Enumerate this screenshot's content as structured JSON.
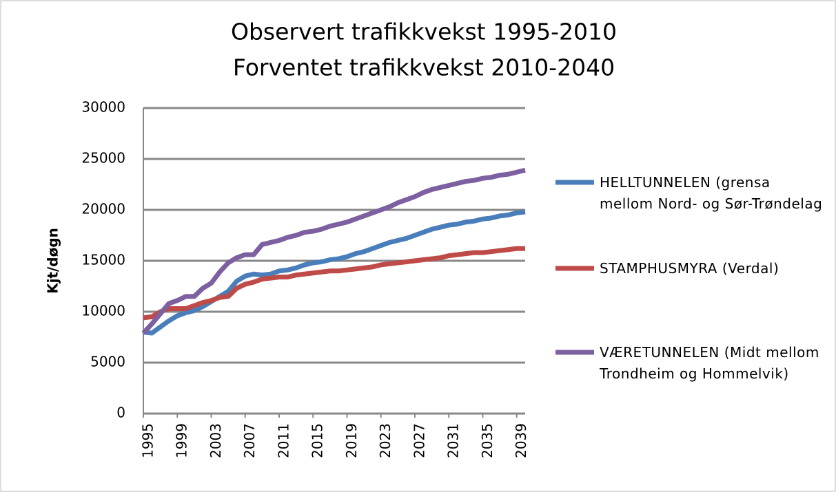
{
  "chart_data": {
    "type": "line",
    "title": "Observert trafikkvekst 1995-2010",
    "subtitle": "Forventet trafikkvekst 2010-2040",
    "ylabel": "Kjt/døgn",
    "x": [
      1995,
      1996,
      1997,
      1998,
      1999,
      2000,
      2001,
      2002,
      2003,
      2004,
      2005,
      2006,
      2007,
      2008,
      2009,
      2010,
      2011,
      2012,
      2013,
      2014,
      2015,
      2016,
      2017,
      2018,
      2019,
      2020,
      2021,
      2022,
      2023,
      2024,
      2025,
      2026,
      2027,
      2028,
      2029,
      2030,
      2031,
      2032,
      2033,
      2034,
      2035,
      2036,
      2037,
      2038,
      2039,
      2040
    ],
    "xlim": [
      1995,
      2040
    ],
    "xticks": [
      1995,
      1999,
      2003,
      2007,
      2011,
      2015,
      2019,
      2023,
      2027,
      2031,
      2035,
      2039
    ],
    "ylim": [
      0,
      30000
    ],
    "yticks": [
      0,
      5000,
      10000,
      15000,
      20000,
      25000,
      30000
    ],
    "grid": true,
    "legend": "right",
    "series": [
      {
        "name": "HELLTUNNELEN (grensa mellom Nord- og Sør-Trøndelag",
        "color": "#4a7ebb",
        "values": [
          8000,
          7900,
          8500,
          9100,
          9600,
          9900,
          10100,
          10500,
          11000,
          11500,
          12000,
          13000,
          13500,
          13700,
          13600,
          13700,
          14000,
          14100,
          14300,
          14600,
          14800,
          14900,
          15100,
          15200,
          15400,
          15700,
          15900,
          16200,
          16500,
          16800,
          17000,
          17200,
          17500,
          17800,
          18100,
          18300,
          18500,
          18600,
          18800,
          18900,
          19100,
          19200,
          19400,
          19500,
          19700,
          19800
        ]
      },
      {
        "name": "STAMPHUSMYRA (Verdal)",
        "color": "#be4b48",
        "values": [
          9400,
          9500,
          10000,
          10300,
          10300,
          10300,
          10600,
          10900,
          11100,
          11400,
          11500,
          12300,
          12700,
          12900,
          13200,
          13300,
          13400,
          13400,
          13600,
          13700,
          13800,
          13900,
          14000,
          14000,
          14100,
          14200,
          14300,
          14400,
          14600,
          14700,
          14800,
          14900,
          15000,
          15100,
          15200,
          15300,
          15500,
          15600,
          15700,
          15800,
          15800,
          15900,
          16000,
          16100,
          16200,
          16200
        ]
      },
      {
        "name": "VÆRETUNNELEN (Midt mellom Trondheim og Hommelvik)",
        "color": "#7d60a0",
        "values": [
          7900,
          8800,
          9800,
          10800,
          11100,
          11500,
          11500,
          12300,
          12800,
          13900,
          14800,
          15300,
          15600,
          15600,
          16600,
          16800,
          17000,
          17300,
          17500,
          17800,
          17900,
          18100,
          18400,
          18600,
          18800,
          19100,
          19400,
          19700,
          20000,
          20300,
          20700,
          21000,
          21300,
          21700,
          22000,
          22200,
          22400,
          22600,
          22800,
          22900,
          23100,
          23200,
          23400,
          23500,
          23700,
          23900
        ]
      }
    ]
  }
}
